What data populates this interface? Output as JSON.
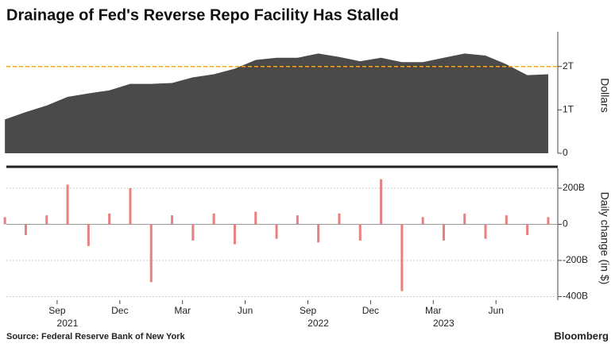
{
  "chart_data": [
    {
      "type": "area",
      "title": "Drainage of Fed's Reverse Repo Facility Has Stalled",
      "y_label": "Dollars",
      "x": [
        "2021-06",
        "2021-07",
        "2021-08",
        "2021-09",
        "2021-10",
        "2021-11",
        "2021-12",
        "2022-01",
        "2022-02",
        "2022-03",
        "2022-04",
        "2022-05",
        "2022-06",
        "2022-07",
        "2022-08",
        "2022-09",
        "2022-10",
        "2022-11",
        "2022-12",
        "2023-01",
        "2023-02",
        "2023-03",
        "2023-04",
        "2023-05",
        "2023-06",
        "2023-07",
        "2023-08"
      ],
      "values": [
        0.78,
        0.95,
        1.1,
        1.3,
        1.38,
        1.45,
        1.6,
        1.6,
        1.62,
        1.75,
        1.82,
        1.95,
        2.15,
        2.2,
        2.2,
        2.3,
        2.22,
        2.12,
        2.2,
        2.1,
        2.1,
        2.2,
        2.3,
        2.25,
        2.05,
        1.8,
        1.82
      ],
      "color": "#4a4a4a",
      "ylim": [
        0,
        2.8
      ],
      "yticks": [
        0,
        {
          "value": 1,
          "label": "1T"
        },
        {
          "value": 2,
          "label": "2T"
        }
      ],
      "hline": {
        "value": 2,
        "color": "#f5a623"
      }
    },
    {
      "type": "bar",
      "y_label": "Daily change (in $)",
      "x": [
        "2021-06",
        "2021-07",
        "2021-08",
        "2021-09",
        "2021-10",
        "2021-11",
        "2021-12",
        "2022-01",
        "2022-02",
        "2022-03",
        "2022-04",
        "2022-05",
        "2022-06",
        "2022-07",
        "2022-08",
        "2022-09",
        "2022-10",
        "2022-11",
        "2022-12",
        "2023-01",
        "2023-02",
        "2023-03",
        "2023-04",
        "2023-05",
        "2023-06",
        "2023-07",
        "2023-08"
      ],
      "values": [
        40,
        -60,
        50,
        220,
        -120,
        60,
        200,
        -320,
        50,
        -90,
        60,
        -110,
        70,
        -80,
        50,
        -100,
        60,
        -90,
        250,
        -370,
        40,
        -90,
        60,
        -80,
        50,
        -60,
        40
      ],
      "color": "#e8807f",
      "ylim": [
        -420,
        310
      ],
      "yticks": [
        {
          "value": -400,
          "label": "-400B"
        },
        {
          "value": -200,
          "label": "-200B"
        },
        0,
        {
          "value": 200,
          "label": "200B"
        }
      ],
      "grid": true,
      "xticks": [
        {
          "value": "2021-09",
          "label": "Sep"
        },
        {
          "value": "2021-12",
          "label": "Dec"
        },
        {
          "value": "2022-03",
          "label": "Mar"
        },
        {
          "value": "2022-06",
          "label": "Jun"
        },
        {
          "value": "2022-09",
          "label": "Sep"
        },
        {
          "value": "2022-12",
          "label": "Dec"
        },
        {
          "value": "2023-03",
          "label": "Mar"
        },
        {
          "value": "2023-06",
          "label": "Jun"
        }
      ],
      "year_labels": [
        {
          "value": "2021-09",
          "label": "2021"
        },
        {
          "value": "2022-09",
          "label": "2022"
        },
        {
          "value": "2023-03",
          "label": "2023"
        }
      ],
      "source": "Source: Federal Reserve Bank of New York",
      "logo": "Bloomberg"
    }
  ]
}
